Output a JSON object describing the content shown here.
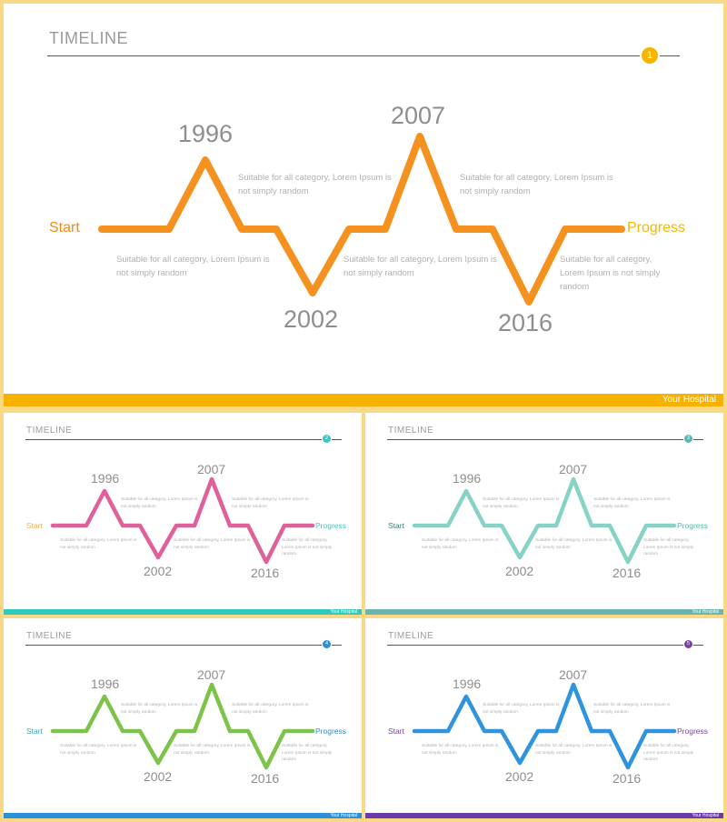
{
  "slides": [
    {
      "title": "TIMELINE",
      "page_number": "1",
      "footer": "Your Hospital",
      "start_label": "Start",
      "end_label": "Progress",
      "years": [
        "1996",
        "2002",
        "2007",
        "2016"
      ],
      "descriptions": [
        "Suitable for all category, Lorem Ipsum is not simply random",
        "Suitable for all category, Lorem Ipsum is not simply random",
        "Suitable for all category, Lorem Ipsum is not simply random",
        "Suitable for all category, Lorem Ipsum is not simply random",
        "Suitable for all category, Lorem Ipsum is not simply random"
      ],
      "colors": {
        "line": "#f5911e",
        "start": "#f08a1a",
        "end": "#f5b800",
        "badge": "#f7b500",
        "footer": "#f7b200"
      }
    },
    {
      "title": "TIMELINE",
      "page_number": "2",
      "footer": "Your Hospital",
      "start_label": "Start",
      "end_label": "Progress",
      "years": [
        "1996",
        "2002",
        "2007",
        "2016"
      ],
      "descriptions": [
        "Suitable for all category, Lorem Ipsum is not simply random",
        "Suitable for all category, Lorem Ipsum is not simply random",
        "Suitable for all category, Lorem Ipsum is not simply random",
        "Suitable for all category, Lorem Ipsum is not simply random",
        "Suitable for all category, Lorem Ipsum is not simply random"
      ],
      "colors": {
        "line": "#e0609a",
        "start": "#f2b24a",
        "end": "#3cc8c0",
        "badge": "#35c9c0",
        "footer": "#2fcabd"
      }
    },
    {
      "title": "TIMELINE",
      "page_number": "3",
      "footer": "Your Hospital",
      "start_label": "Start",
      "end_label": "Progress",
      "years": [
        "1996",
        "2002",
        "2007",
        "2016"
      ],
      "descriptions": [
        "Suitable for all category, Lorem Ipsum is not simply random",
        "Suitable for all category, Lorem Ipsum is not simply random",
        "Suitable for all category, Lorem Ipsum is not simply random",
        "Suitable for all category, Lorem Ipsum is not simply random",
        "Suitable for all category, Lorem Ipsum is not simply random"
      ],
      "colors": {
        "line": "#86d3c6",
        "start": "#3b7d7a",
        "end": "#4cb9b1",
        "badge": "#5ab8b2",
        "footer": "#6ab5b0"
      }
    },
    {
      "title": "TIMELINE",
      "page_number": "4",
      "footer": "Your Hospital",
      "start_label": "Start",
      "end_label": "Progress",
      "years": [
        "1996",
        "2002",
        "2007",
        "2016"
      ],
      "descriptions": [
        "Suitable for all category, Lorem Ipsum is not simply random",
        "Suitable for all category, Lorem Ipsum is not simply random",
        "Suitable for all category, Lorem Ipsum is not simply random",
        "Suitable for all category, Lorem Ipsum is not simply random",
        "Suitable for all category, Lorem Ipsum is not simply random"
      ],
      "colors": {
        "line": "#7dc34a",
        "start": "#2da8c7",
        "end": "#2b8fcf",
        "badge": "#2b8fd6",
        "footer": "#2b90d8"
      }
    },
    {
      "title": "TIMELINE",
      "page_number": "5",
      "footer": "Your Hospital",
      "start_label": "Start",
      "end_label": "Progress",
      "years": [
        "1996",
        "2002",
        "2007",
        "2016"
      ],
      "descriptions": [
        "Suitable for all category, Lorem Ipsum is not simply random",
        "Suitable for all category, Lorem Ipsum is not simply random",
        "Suitable for all category, Lorem Ipsum is not simply random",
        "Suitable for all category, Lorem Ipsum is not simply random",
        "Suitable for all category, Lorem Ipsum is not simply random"
      ],
      "colors": {
        "line": "#2f93de",
        "start": "#7a45a8",
        "end": "#7b3fa8",
        "badge": "#7b3fa8",
        "footer": "#6b3aa8"
      }
    }
  ]
}
